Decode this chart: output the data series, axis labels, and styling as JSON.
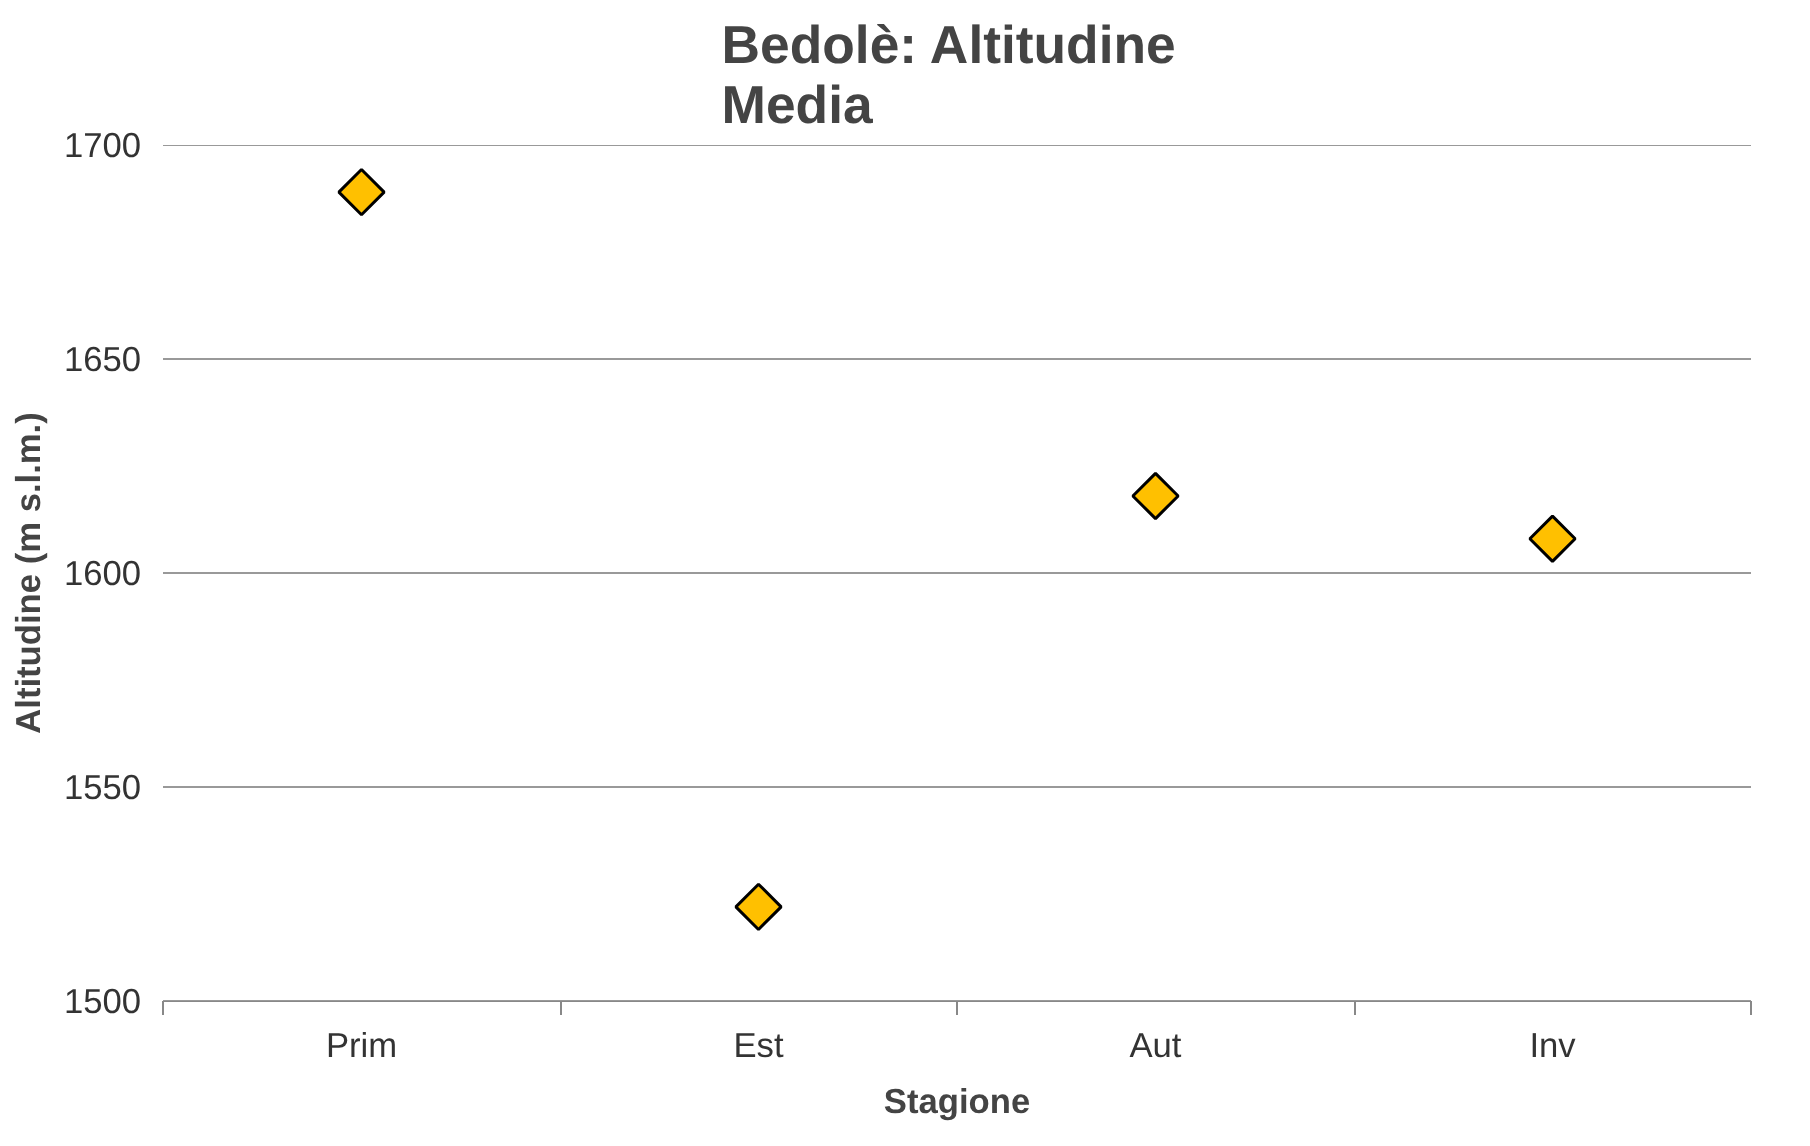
{
  "chart_data": {
    "type": "scatter",
    "title": "Bedolè:  Altitudine\nMedia",
    "xlabel": "Stagione",
    "ylabel": "Altitudine (m s.l.m.)",
    "categories": [
      "Prim",
      "Est",
      "Aut",
      "Inv"
    ],
    "series": [
      {
        "color": "#ffc000",
        "values": [
          1689,
          1522,
          1618,
          1608
        ]
      }
    ],
    "ylim": [
      1500,
      1700
    ],
    "yticks": [
      1500,
      1550,
      1600,
      1650,
      1700
    ],
    "grid": "y",
    "marker": "diamond"
  }
}
